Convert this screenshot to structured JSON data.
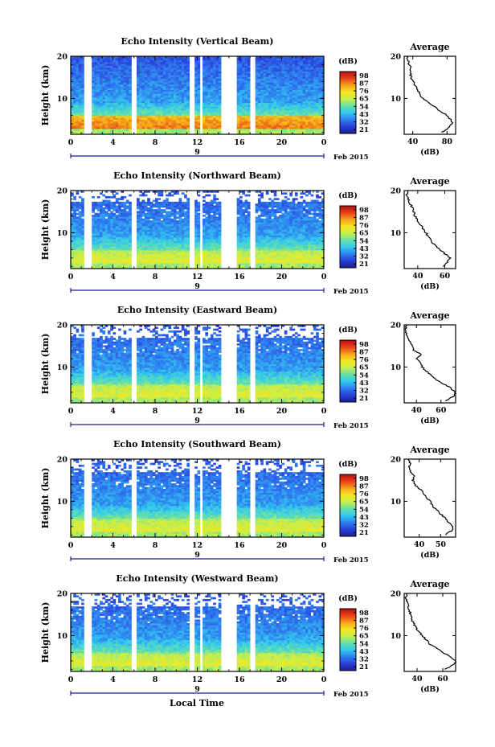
{
  "figure": {
    "x_axis_title": "Local Time",
    "date_label": "Feb 2015",
    "day_label": "9",
    "colorbar_unit": "(dB)",
    "colorbar_ticks": [
      "21",
      "32",
      "43",
      "54",
      "65",
      "76",
      "87",
      "98"
    ],
    "colors": {
      "scale": [
        "#1a1f8f",
        "#2b3fd8",
        "#2f7ff0",
        "#33c9ee",
        "#66e0a8",
        "#c7ef4c",
        "#f5e61f",
        "#f6a21a",
        "#e8401a",
        "#b31111"
      ]
    }
  },
  "chart_data": [
    {
      "type": "heatmap",
      "title": "Echo Intensity (Vertical Beam)",
      "ylabel": "Height (km)",
      "xlabel": "Local Time",
      "x_ticks": [
        "0",
        "4",
        "8",
        "12",
        "16",
        "20",
        "0"
      ],
      "y_ticks": [
        "10",
        "20"
      ],
      "xlim": [
        0,
        24
      ],
      "ylim": [
        1.5,
        20
      ],
      "zlim": [
        21,
        98
      ],
      "profile": {
        "title": "Average",
        "xlabel": "(dB)",
        "x_ticks": [
          "40",
          "80"
        ],
        "xlim": [
          30,
          90
        ],
        "points": [
          [
            74,
            2
          ],
          [
            82,
            3
          ],
          [
            86,
            4
          ],
          [
            84,
            5
          ],
          [
            80,
            6
          ],
          [
            72,
            7
          ],
          [
            65,
            8
          ],
          [
            58,
            9
          ],
          [
            52,
            10
          ],
          [
            48,
            11
          ],
          [
            46,
            12
          ],
          [
            43,
            13
          ],
          [
            40,
            14
          ],
          [
            38,
            15
          ],
          [
            37,
            16
          ],
          [
            38,
            17
          ],
          [
            36,
            18
          ],
          [
            34,
            19
          ],
          [
            33,
            20
          ]
        ]
      }
    },
    {
      "type": "heatmap",
      "title": "Echo Intensity (Northward Beam)",
      "ylabel": "Height (km)",
      "xlabel": "Local Time",
      "x_ticks": [
        "0",
        "4",
        "8",
        "12",
        "16",
        "20",
        "0"
      ],
      "y_ticks": [
        "10",
        "20"
      ],
      "xlim": [
        0,
        24
      ],
      "ylim": [
        1.5,
        20
      ],
      "zlim": [
        21,
        98
      ],
      "profile": {
        "title": "Average",
        "xlabel": "(dB)",
        "x_ticks": [
          "40",
          "60"
        ],
        "xlim": [
          30,
          68
        ],
        "points": [
          [
            58,
            2
          ],
          [
            62,
            3
          ],
          [
            64,
            4
          ],
          [
            60,
            5
          ],
          [
            56,
            6
          ],
          [
            53,
            7
          ],
          [
            50,
            8
          ],
          [
            48,
            9
          ],
          [
            46,
            10
          ],
          [
            44,
            11
          ],
          [
            42,
            12
          ],
          [
            40,
            13
          ],
          [
            38,
            14
          ],
          [
            37,
            15
          ],
          [
            36,
            16
          ],
          [
            34,
            17
          ],
          [
            33,
            18
          ],
          [
            32,
            19
          ],
          [
            33,
            20
          ]
        ]
      }
    },
    {
      "type": "heatmap",
      "title": "Echo Intensity (Eastward Beam)",
      "ylabel": "Height (km)",
      "xlabel": "Local Time",
      "x_ticks": [
        "0",
        "4",
        "8",
        "12",
        "16",
        "20",
        "0"
      ],
      "y_ticks": [
        "10",
        "20"
      ],
      "xlim": [
        0,
        24
      ],
      "ylim": [
        1.5,
        20
      ],
      "zlim": [
        21,
        98
      ],
      "profile": {
        "title": "Average",
        "xlabel": "(dB)",
        "x_ticks": [
          "40",
          "60"
        ],
        "xlim": [
          30,
          72
        ],
        "points": [
          [
            64,
            2
          ],
          [
            70,
            3
          ],
          [
            72,
            4
          ],
          [
            68,
            5
          ],
          [
            62,
            6
          ],
          [
            56,
            7
          ],
          [
            52,
            8
          ],
          [
            48,
            9
          ],
          [
            45,
            10
          ],
          [
            43,
            11
          ],
          [
            40,
            12
          ],
          [
            44,
            13
          ],
          [
            38,
            14
          ],
          [
            36,
            15
          ],
          [
            35,
            16
          ],
          [
            33,
            17
          ],
          [
            32,
            18
          ],
          [
            31,
            19
          ],
          [
            32,
            20
          ]
        ]
      }
    },
    {
      "type": "heatmap",
      "title": "Echo Intensity (Southward Beam)",
      "ylabel": "Height (km)",
      "xlabel": "Local Time",
      "x_ticks": [
        "0",
        "4",
        "8",
        "12",
        "16",
        "20",
        "0"
      ],
      "y_ticks": [
        "10",
        "20"
      ],
      "xlim": [
        0,
        24
      ],
      "ylim": [
        1.5,
        20
      ],
      "zlim": [
        21,
        98
      ],
      "profile": {
        "title": "Average",
        "xlabel": "(dB)",
        "x_ticks": [
          "40",
          "50"
        ],
        "xlim": [
          33,
          57
        ],
        "points": [
          [
            52,
            2
          ],
          [
            55,
            3
          ],
          [
            56,
            4
          ],
          [
            54,
            5
          ],
          [
            52,
            6
          ],
          [
            50,
            7
          ],
          [
            48,
            8
          ],
          [
            46,
            9
          ],
          [
            45,
            10
          ],
          [
            43,
            11
          ],
          [
            42,
            12
          ],
          [
            40,
            13
          ],
          [
            38,
            14
          ],
          [
            37,
            15
          ],
          [
            38,
            16
          ],
          [
            36,
            17
          ],
          [
            35,
            18
          ],
          [
            36,
            19
          ],
          [
            35,
            20
          ]
        ]
      }
    },
    {
      "type": "heatmap",
      "title": "Echo Intensity (Westward Beam)",
      "ylabel": "Height (km)",
      "xlabel": "Local Time",
      "x_ticks": [
        "0",
        "4",
        "8",
        "12",
        "16",
        "20",
        "0"
      ],
      "y_ticks": [
        "10",
        "20"
      ],
      "xlim": [
        0,
        24
      ],
      "ylim": [
        1.5,
        20
      ],
      "zlim": [
        21,
        98
      ],
      "profile": {
        "title": "Average",
        "xlabel": "(dB)",
        "x_ticks": [
          "40",
          "60"
        ],
        "xlim": [
          30,
          70
        ],
        "points": [
          [
            62,
            2
          ],
          [
            68,
            3
          ],
          [
            70,
            4
          ],
          [
            66,
            5
          ],
          [
            60,
            6
          ],
          [
            55,
            7
          ],
          [
            50,
            8
          ],
          [
            47,
            9
          ],
          [
            44,
            10
          ],
          [
            41,
            11
          ],
          [
            39,
            12
          ],
          [
            37,
            13
          ],
          [
            36,
            14
          ],
          [
            35,
            15
          ],
          [
            34,
            16
          ],
          [
            33,
            17
          ],
          [
            32,
            18
          ],
          [
            31,
            19
          ],
          [
            32,
            20
          ]
        ]
      }
    }
  ]
}
